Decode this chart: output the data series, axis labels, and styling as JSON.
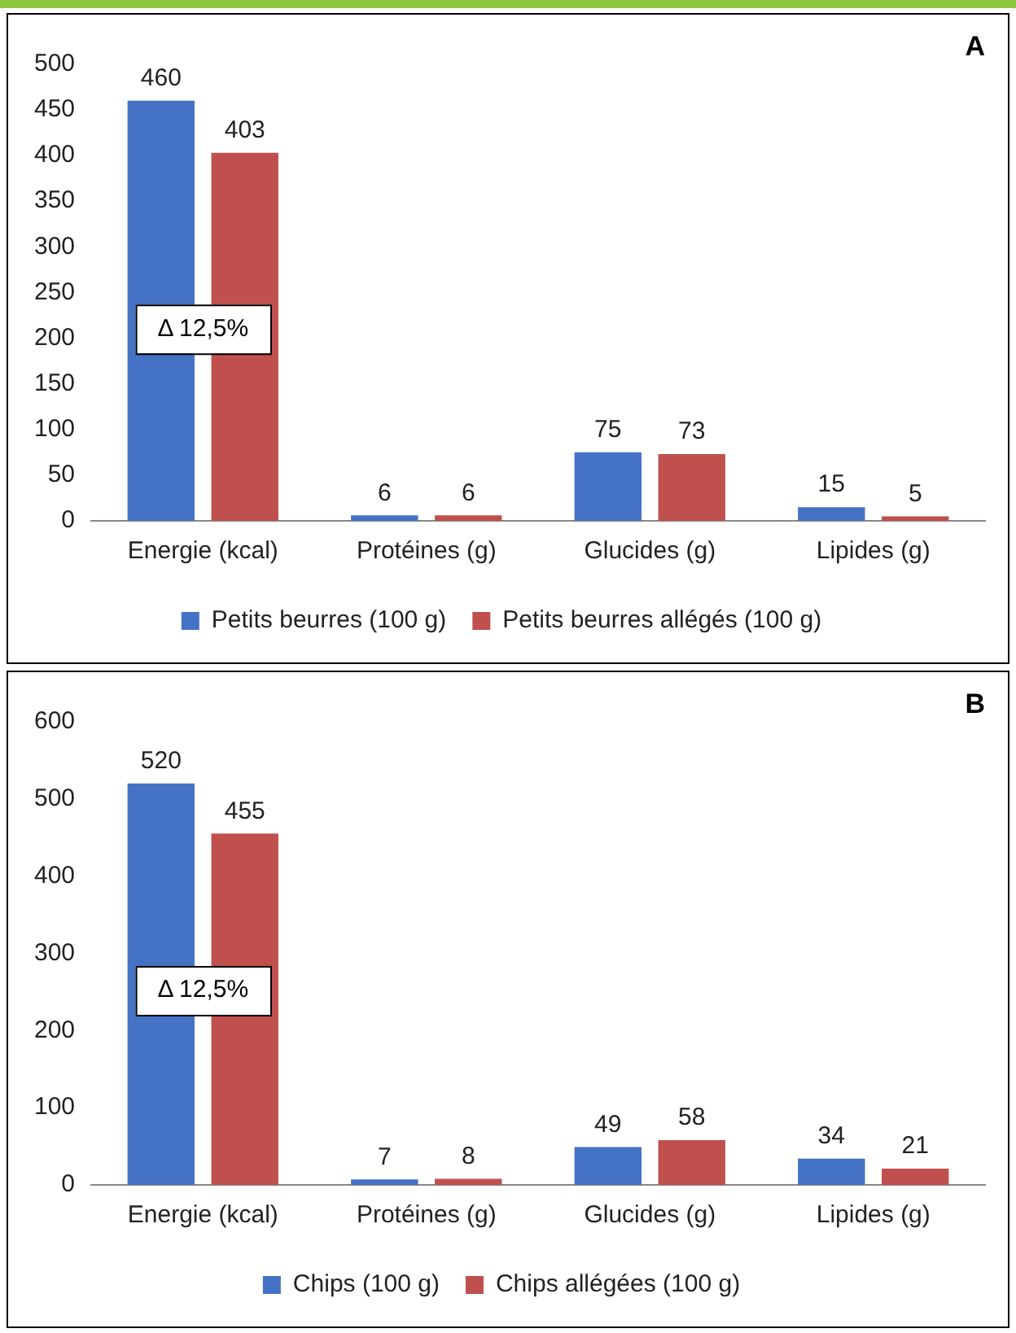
{
  "chart_data": [
    {
      "type": "bar",
      "title": "A",
      "categories": [
        "Energie (kcal)",
        "Protéines (g)",
        "Glucides (g)",
        "Lipides (g)"
      ],
      "series": [
        {
          "name": "Petits beurres (100 g)",
          "color": "#4472c4",
          "values": [
            460,
            6,
            75,
            15
          ]
        },
        {
          "name": "Petits beurres allégés (100 g)",
          "color": "#c0504d",
          "values": [
            403,
            6,
            73,
            5
          ]
        }
      ],
      "ylim": [
        0,
        500
      ],
      "yticks": [
        0,
        50,
        100,
        150,
        200,
        250,
        300,
        350,
        400,
        450,
        500
      ],
      "grid": false,
      "legend": "bottom",
      "data_labels": true,
      "annotations": [
        "Δ 12,5%"
      ]
    },
    {
      "type": "bar",
      "title": "B",
      "categories": [
        "Energie (kcal)",
        "Protéines (g)",
        "Glucides (g)",
        "Lipides (g)"
      ],
      "series": [
        {
          "name": "Chips (100 g)",
          "color": "#4472c4",
          "values": [
            520,
            7,
            49,
            34
          ]
        },
        {
          "name": "Chips allégées (100 g)",
          "color": "#c0504d",
          "values": [
            455,
            8,
            58,
            21
          ]
        }
      ],
      "ylim": [
        0,
        600
      ],
      "yticks": [
        0,
        100,
        200,
        300,
        400,
        500,
        600
      ],
      "grid": false,
      "legend": "bottom",
      "data_labels": true,
      "annotations": [
        "Δ 12,5%"
      ]
    }
  ]
}
